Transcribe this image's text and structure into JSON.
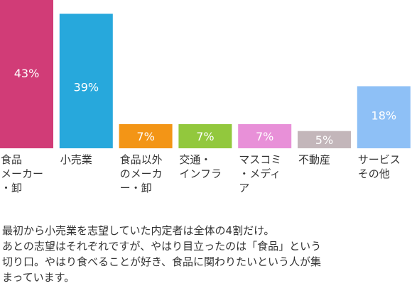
{
  "chart_data": {
    "type": "bar",
    "categories": [
      "食品\nメーカー\n・卸",
      "小売業",
      "食品以外\nのメーカ\nー・卸",
      "交通・\nインフラ",
      "マスコミ\n・メディ\nア",
      "不動産",
      "サービス\nその他"
    ],
    "values": [
      43,
      39,
      7,
      7,
      7,
      5,
      18
    ],
    "value_labels": [
      "43%",
      "39%",
      "7%",
      "7%",
      "7%",
      "5%",
      "18%"
    ],
    "colors": [
      "#d13c77",
      "#27a8dc",
      "#f39516",
      "#92c83d",
      "#e890d8",
      "#c3b6ba",
      "#8ec0f6"
    ],
    "ylim": [
      0,
      43
    ],
    "title": "",
    "xlabel": "",
    "ylabel": ""
  },
  "caption": "最初から小売業を志望していた内定者は全体の4割だけ。\nあとの志望はそれぞれですが、やはり目立ったのは「食品」という\n切り口。やはり食べることが好き、食品に関わりたいという人が集\nまっています。"
}
